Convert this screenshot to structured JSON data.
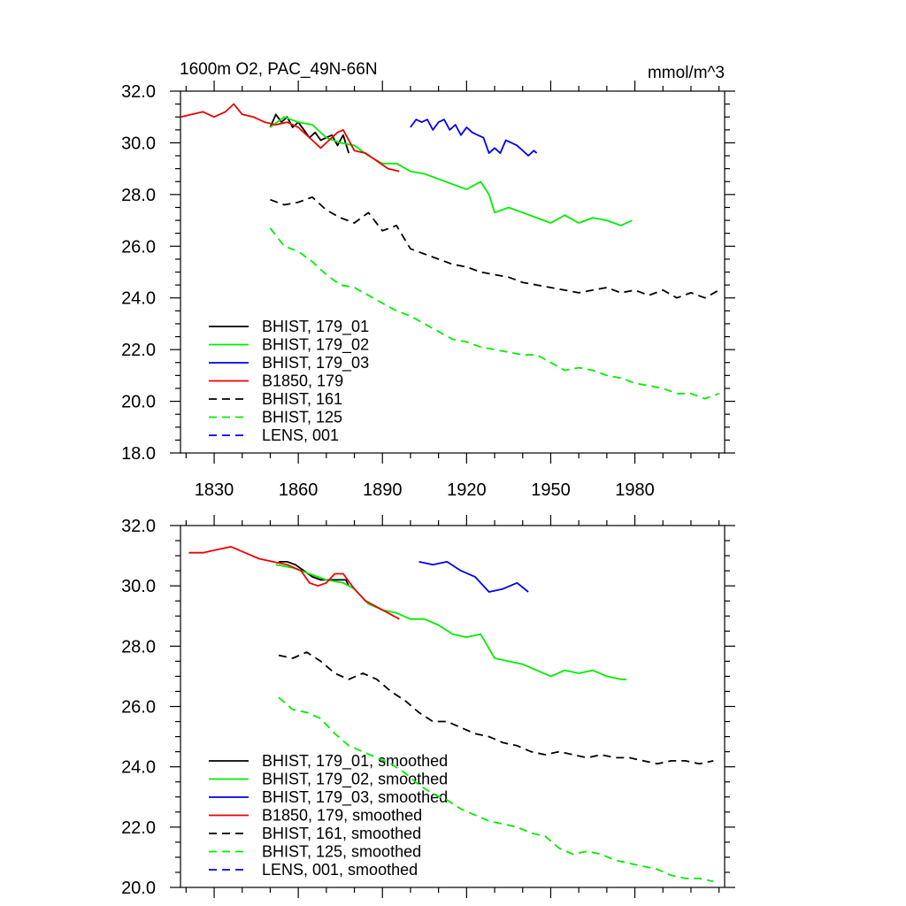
{
  "figure": {
    "title": "1600m O2, PAC_49N-66N",
    "units": "mmol/m^3"
  },
  "chart_data": [
    {
      "type": "line",
      "panel": "top",
      "title": "1600m O2, PAC_49N-66N",
      "units_label": "mmol/m^3",
      "xlabel": "",
      "ylabel": "",
      "xlim": [
        1818,
        2012
      ],
      "ylim": [
        18.0,
        32.0
      ],
      "x_ticks": [
        1830,
        1860,
        1890,
        1920,
        1950,
        1980
      ],
      "x_tick_labels": [
        "1830",
        "1860",
        "1890",
        "1920",
        "1950",
        "1980"
      ],
      "y_ticks": [
        18.0,
        20.0,
        22.0,
        24.0,
        26.0,
        28.0,
        30.0,
        32.0
      ],
      "y_tick_labels": [
        "18.0",
        "20.0",
        "22.0",
        "24.0",
        "26.0",
        "28.0",
        "30.0",
        "32.0"
      ],
      "grid": false,
      "legend_position": "bottom-left",
      "series": [
        {
          "name": "BHIST, 179_01",
          "color": "#000000",
          "dash": "solid",
          "x": [
            1850,
            1852,
            1854,
            1856,
            1858,
            1860,
            1862,
            1864,
            1866,
            1868,
            1870,
            1872,
            1874,
            1876,
            1878
          ],
          "y": [
            30.6,
            31.1,
            30.8,
            31.0,
            30.6,
            30.8,
            30.5,
            30.2,
            30.4,
            30.1,
            30.2,
            30.3,
            29.9,
            30.3,
            29.6
          ]
        },
        {
          "name": "BHIST, 179_02",
          "color": "#00ee00",
          "dash": "solid",
          "x": [
            1850,
            1855,
            1860,
            1865,
            1870,
            1875,
            1880,
            1885,
            1890,
            1895,
            1900,
            1905,
            1910,
            1915,
            1920,
            1925,
            1928,
            1930,
            1935,
            1940,
            1945,
            1950,
            1955,
            1960,
            1965,
            1970,
            1975,
            1979
          ],
          "y": [
            30.6,
            31.0,
            30.8,
            30.7,
            30.2,
            30.0,
            29.9,
            29.5,
            29.2,
            29.2,
            28.9,
            28.8,
            28.6,
            28.4,
            28.2,
            28.5,
            28.0,
            27.3,
            27.5,
            27.3,
            27.1,
            26.9,
            27.2,
            26.9,
            27.1,
            27.0,
            26.8,
            27.0
          ]
        },
        {
          "name": "BHIST, 179_03",
          "color": "#0000ee",
          "dash": "solid",
          "x": [
            1900,
            1902,
            1904,
            1906,
            1908,
            1910,
            1912,
            1914,
            1916,
            1918,
            1920,
            1922,
            1924,
            1926,
            1928,
            1930,
            1932,
            1934,
            1936,
            1938,
            1940,
            1942,
            1944,
            1945
          ],
          "y": [
            30.6,
            30.9,
            30.8,
            30.9,
            30.5,
            30.8,
            30.9,
            30.5,
            30.7,
            30.3,
            30.6,
            30.4,
            30.3,
            30.2,
            29.6,
            29.8,
            29.6,
            30.1,
            30.0,
            29.9,
            29.7,
            29.5,
            29.7,
            29.6
          ]
        },
        {
          "name": "B1850, 179",
          "color": "#ee0000",
          "dash": "solid",
          "x": [
            1818,
            1822,
            1826,
            1830,
            1834,
            1837,
            1840,
            1844,
            1848,
            1852,
            1856,
            1860,
            1864,
            1868,
            1870,
            1874,
            1876,
            1880,
            1884,
            1888,
            1892,
            1896
          ],
          "y": [
            31.0,
            31.1,
            31.2,
            31.0,
            31.2,
            31.5,
            31.1,
            31.0,
            30.8,
            30.7,
            30.8,
            30.6,
            30.2,
            29.8,
            30.0,
            30.4,
            30.5,
            29.7,
            29.6,
            29.3,
            29.0,
            28.9
          ]
        },
        {
          "name": "BHIST, 161",
          "color": "#000000",
          "dash": "dashed",
          "x": [
            1850,
            1855,
            1860,
            1865,
            1870,
            1875,
            1880,
            1885,
            1890,
            1895,
            1900,
            1905,
            1910,
            1915,
            1920,
            1925,
            1930,
            1935,
            1940,
            1945,
            1950,
            1955,
            1960,
            1965,
            1970,
            1975,
            1980,
            1985,
            1990,
            1995,
            2000,
            2005,
            2010
          ],
          "y": [
            27.8,
            27.6,
            27.7,
            27.9,
            27.4,
            27.1,
            26.9,
            27.3,
            26.6,
            26.8,
            25.9,
            25.7,
            25.5,
            25.3,
            25.2,
            25.0,
            24.9,
            24.8,
            24.6,
            24.5,
            24.4,
            24.3,
            24.2,
            24.3,
            24.4,
            24.2,
            24.3,
            24.1,
            24.3,
            24.0,
            24.2,
            24.0,
            24.3
          ]
        },
        {
          "name": "BHIST, 125",
          "color": "#00ee00",
          "dash": "dashed",
          "x": [
            1850,
            1855,
            1860,
            1865,
            1870,
            1875,
            1880,
            1885,
            1890,
            1895,
            1900,
            1905,
            1910,
            1915,
            1920,
            1925,
            1930,
            1935,
            1940,
            1945,
            1950,
            1955,
            1960,
            1965,
            1970,
            1975,
            1980,
            1985,
            1990,
            1995,
            2000,
            2005,
            2010
          ],
          "y": [
            26.7,
            26.0,
            25.8,
            25.4,
            24.9,
            24.5,
            24.4,
            24.1,
            23.8,
            23.5,
            23.3,
            23.0,
            22.7,
            22.4,
            22.3,
            22.1,
            22.0,
            21.9,
            21.8,
            21.8,
            21.5,
            21.2,
            21.3,
            21.2,
            21.0,
            20.9,
            20.7,
            20.6,
            20.5,
            20.3,
            20.3,
            20.1,
            20.3
          ]
        },
        {
          "name": "LENS, 001",
          "color": "#0000ee",
          "dash": "dashed",
          "x": [],
          "y": []
        }
      ]
    },
    {
      "type": "line",
      "panel": "bottom",
      "xlabel": "",
      "ylabel": "",
      "xlim": [
        1818,
        2012
      ],
      "ylim": [
        20.0,
        32.0
      ],
      "x_ticks": [
        1830,
        1860,
        1890,
        1920,
        1950,
        1980
      ],
      "x_tick_labels": [],
      "y_ticks": [
        20.0,
        22.0,
        24.0,
        26.0,
        28.0,
        30.0,
        32.0
      ],
      "y_tick_labels": [
        "20.0",
        "22.0",
        "24.0",
        "26.0",
        "28.0",
        "30.0",
        "32.0"
      ],
      "grid": false,
      "legend_position": "bottom-left",
      "series": [
        {
          "name": "BHIST, 179_01, smoothed",
          "color": "#000000",
          "dash": "solid",
          "x": [
            1853,
            1856,
            1859,
            1862,
            1865,
            1868,
            1871,
            1874,
            1877,
            1878
          ],
          "y": [
            30.8,
            30.8,
            30.7,
            30.5,
            30.3,
            30.2,
            30.2,
            30.2,
            30.2,
            30.0
          ]
        },
        {
          "name": "BHIST, 179_02, smoothed",
          "color": "#00ee00",
          "dash": "solid",
          "x": [
            1852,
            1858,
            1864,
            1870,
            1876,
            1880,
            1885,
            1890,
            1895,
            1900,
            1905,
            1910,
            1915,
            1920,
            1925,
            1930,
            1935,
            1940,
            1945,
            1950,
            1955,
            1960,
            1965,
            1970,
            1975,
            1977
          ],
          "y": [
            30.7,
            30.6,
            30.4,
            30.2,
            30.1,
            29.9,
            29.4,
            29.2,
            29.1,
            28.9,
            28.9,
            28.7,
            28.4,
            28.3,
            28.4,
            27.6,
            27.5,
            27.4,
            27.2,
            27.0,
            27.2,
            27.1,
            27.2,
            27.0,
            26.9,
            26.9
          ]
        },
        {
          "name": "BHIST, 179_03, smoothed",
          "color": "#0000ee",
          "dash": "solid",
          "x": [
            1903,
            1908,
            1913,
            1918,
            1923,
            1928,
            1933,
            1938,
            1942
          ],
          "y": [
            30.8,
            30.7,
            30.8,
            30.5,
            30.3,
            29.8,
            29.9,
            30.1,
            29.8
          ]
        },
        {
          "name": "B1850, 179, smoothed",
          "color": "#ee0000",
          "dash": "solid",
          "x": [
            1821,
            1826,
            1831,
            1836,
            1841,
            1846,
            1851,
            1856,
            1861,
            1864,
            1867,
            1870,
            1873,
            1876,
            1880,
            1884,
            1888,
            1892,
            1896
          ],
          "y": [
            31.1,
            31.1,
            31.2,
            31.3,
            31.1,
            30.9,
            30.8,
            30.7,
            30.5,
            30.1,
            30.0,
            30.1,
            30.4,
            30.4,
            29.9,
            29.5,
            29.3,
            29.1,
            28.9
          ]
        },
        {
          "name": "BHIST, 161, smoothed",
          "color": "#000000",
          "dash": "dashed",
          "x": [
            1853,
            1858,
            1863,
            1868,
            1873,
            1878,
            1883,
            1888,
            1893,
            1898,
            1903,
            1908,
            1913,
            1918,
            1923,
            1928,
            1933,
            1938,
            1943,
            1948,
            1953,
            1958,
            1963,
            1968,
            1973,
            1978,
            1983,
            1988,
            1993,
            1998,
            2003,
            2008
          ],
          "y": [
            27.7,
            27.6,
            27.8,
            27.5,
            27.1,
            26.9,
            27.1,
            26.9,
            26.5,
            26.2,
            25.8,
            25.5,
            25.5,
            25.3,
            25.1,
            25.0,
            24.8,
            24.7,
            24.5,
            24.4,
            24.5,
            24.4,
            24.3,
            24.4,
            24.3,
            24.3,
            24.2,
            24.1,
            24.2,
            24.2,
            24.1,
            24.2
          ]
        },
        {
          "name": "BHIST, 125, smoothed",
          "color": "#00ee00",
          "dash": "dashed",
          "x": [
            1853,
            1858,
            1863,
            1868,
            1873,
            1878,
            1883,
            1888,
            1893,
            1898,
            1903,
            1908,
            1913,
            1918,
            1923,
            1928,
            1933,
            1938,
            1943,
            1948,
            1953,
            1958,
            1963,
            1968,
            1973,
            1978,
            1983,
            1988,
            1993,
            1998,
            2003,
            2008
          ],
          "y": [
            26.3,
            25.9,
            25.8,
            25.6,
            25.1,
            24.7,
            24.5,
            24.3,
            24.1,
            23.8,
            23.4,
            23.1,
            22.9,
            22.6,
            22.4,
            22.2,
            22.1,
            22.0,
            21.8,
            21.7,
            21.3,
            21.1,
            21.2,
            21.1,
            20.9,
            20.8,
            20.7,
            20.6,
            20.4,
            20.3,
            20.3,
            20.2
          ]
        },
        {
          "name": "LENS, 001, smoothed",
          "color": "#0000ee",
          "dash": "dashed",
          "x": [],
          "y": []
        }
      ]
    }
  ]
}
